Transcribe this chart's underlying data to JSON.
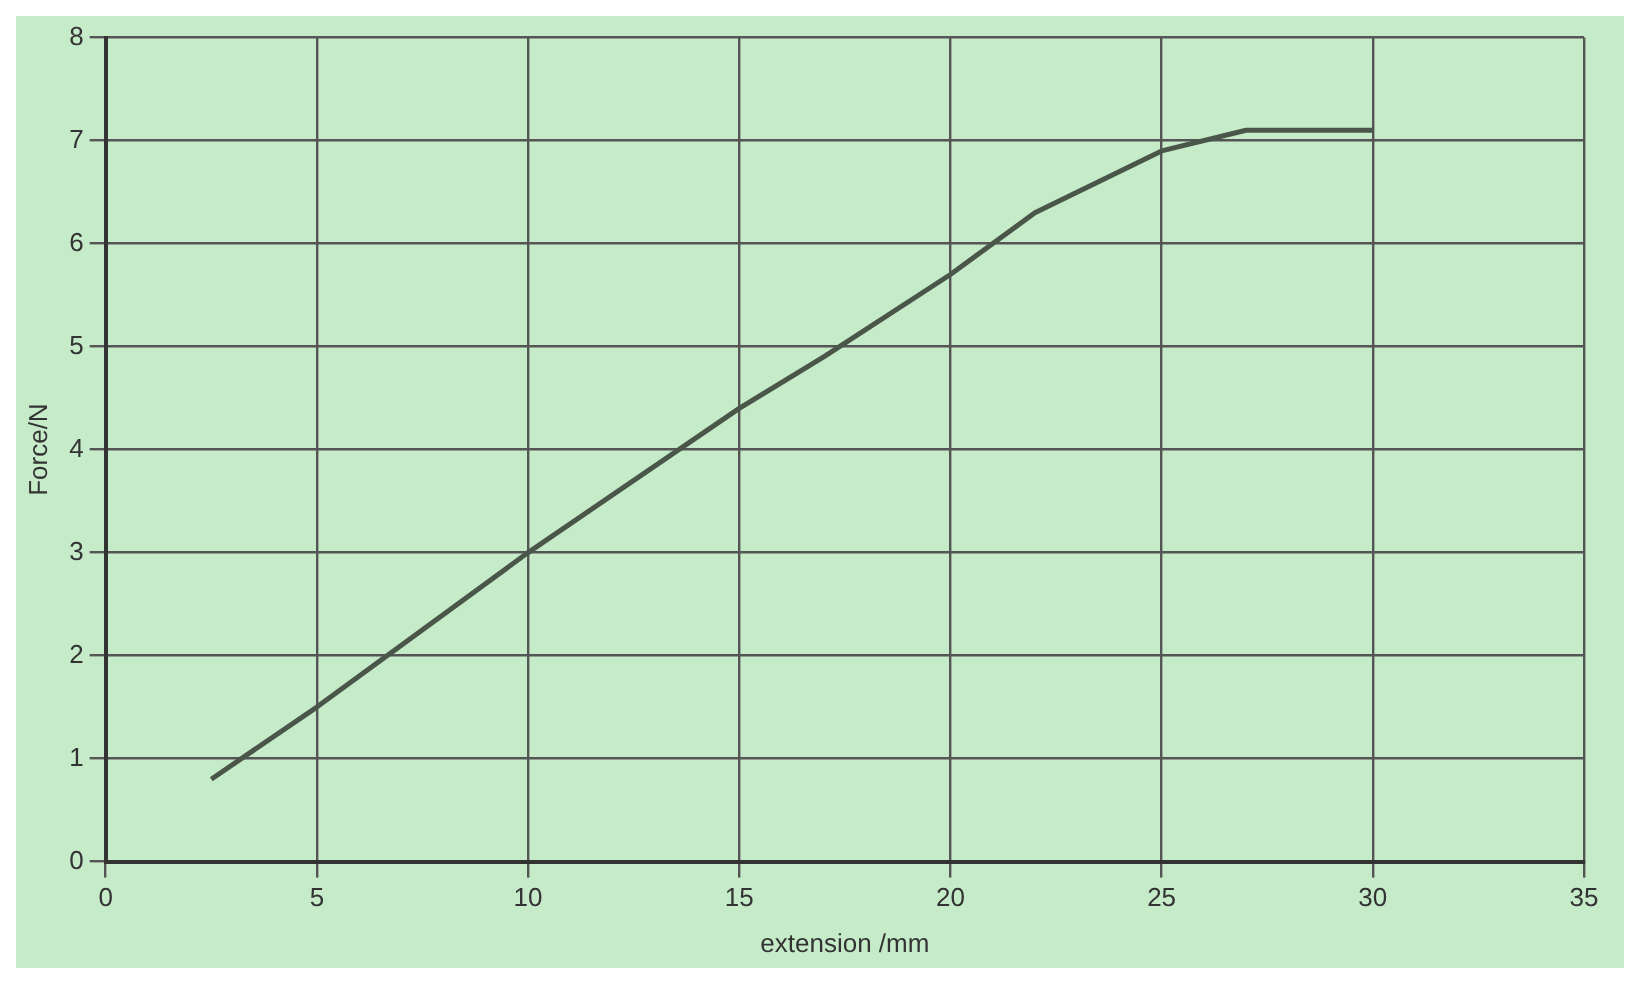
{
  "chart_data": {
    "type": "line",
    "xlabel": "extension /mm",
    "ylabel": "Force/N",
    "x": [
      2.5,
      5,
      10,
      15,
      17,
      20,
      22,
      25,
      27,
      30
    ],
    "series": [
      {
        "color": "#4a564a",
        "values": [
          0.8,
          1.5,
          3.0,
          4.4,
          4.9,
          5.7,
          6.3,
          6.9,
          7.1,
          7.1
        ]
      }
    ],
    "xlim": [
      0,
      35
    ],
    "xticks": [
      0,
      5,
      10,
      15,
      20,
      25,
      30,
      35
    ],
    "ylim": [
      0,
      8
    ],
    "yticks": [
      0,
      1,
      2,
      3,
      4,
      5,
      6,
      7,
      8
    ],
    "grid": true,
    "marker": "none",
    "line_style": "solid",
    "legend": false
  }
}
